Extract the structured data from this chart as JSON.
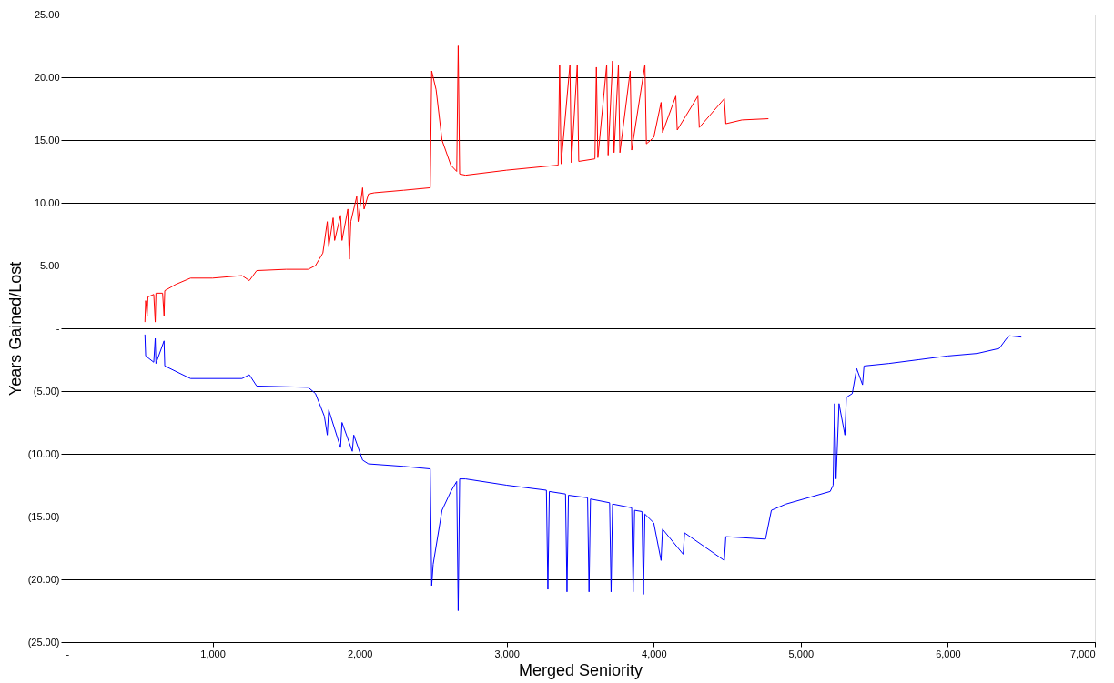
{
  "chart_data": {
    "type": "line",
    "xlabel": "Merged Seniority",
    "ylabel": "Years Gained/Lost",
    "xlim": [
      0,
      7000
    ],
    "ylim": [
      -25,
      25
    ],
    "xticks": [
      {
        "value": 0,
        "label": "-"
      },
      {
        "value": 1000,
        "label": "1,000"
      },
      {
        "value": 2000,
        "label": "2,000"
      },
      {
        "value": 3000,
        "label": "3,000"
      },
      {
        "value": 4000,
        "label": "4,000"
      },
      {
        "value": 5000,
        "label": "5,000"
      },
      {
        "value": 6000,
        "label": "6,000"
      },
      {
        "value": 7000,
        "label": "7,000"
      }
    ],
    "yticks": [
      {
        "value": -25,
        "label": "(25.00)"
      },
      {
        "value": -20,
        "label": "(20.00)"
      },
      {
        "value": -15,
        "label": "(15.00)"
      },
      {
        "value": -10,
        "label": "(10.00)"
      },
      {
        "value": -5,
        "label": "(5.00)"
      },
      {
        "value": 0,
        "label": "-"
      },
      {
        "value": 5,
        "label": "5.00"
      },
      {
        "value": 10,
        "label": "10.00"
      },
      {
        "value": 15,
        "label": "15.00"
      },
      {
        "value": 20,
        "label": "20.00"
      },
      {
        "value": 25,
        "label": "25.00"
      }
    ],
    "grid": "y",
    "line_style": "solid",
    "marker": "none",
    "series": [
      {
        "color": "#0000ff",
        "x": [
          540,
          545,
          600,
          610,
          615,
          670,
          675,
          850,
          1200,
          1250,
          1300,
          1650,
          1700,
          1760,
          1780,
          1790,
          1870,
          1880,
          1950,
          1960,
          2020,
          2060,
          2300,
          2480,
          2490,
          2500,
          2560,
          2620,
          2660,
          2670,
          2680,
          2720,
          3000,
          3270,
          3280,
          3290,
          3400,
          3410,
          3420,
          3550,
          3560,
          3570,
          3700,
          3710,
          3720,
          3850,
          3860,
          3870,
          3920,
          3930,
          3940,
          4000,
          4050,
          4060,
          4200,
          4210,
          4480,
          4490,
          4760,
          4800,
          4900,
          5200,
          5220,
          5230,
          5240,
          5260,
          5300,
          5310,
          5350,
          5380,
          5420,
          5430,
          5600,
          5800,
          6000,
          6200,
          6350,
          6400,
          6420,
          6500
        ],
        "values": [
          -0.5,
          -2.2,
          -2.7,
          -0.8,
          -2.8,
          -1.0,
          -3.0,
          -4.0,
          -4.0,
          -3.7,
          -4.6,
          -4.7,
          -5.2,
          -7.0,
          -8.5,
          -6.5,
          -9.5,
          -7.5,
          -9.8,
          -8.5,
          -10.5,
          -10.8,
          -11.0,
          -11.2,
          -20.5,
          -18.8,
          -14.5,
          -13.0,
          -12.2,
          -22.5,
          -12.0,
          -12.0,
          -12.5,
          -12.9,
          -20.8,
          -13.0,
          -13.2,
          -21.0,
          -13.3,
          -13.5,
          -21.0,
          -13.6,
          -13.9,
          -21.0,
          -14.0,
          -14.3,
          -21.0,
          -14.5,
          -14.6,
          -21.2,
          -14.8,
          -15.5,
          -18.5,
          -16.0,
          -18.0,
          -16.3,
          -18.5,
          -16.6,
          -16.8,
          -14.5,
          -14.0,
          -13.0,
          -12.5,
          -6.0,
          -12.0,
          -6.0,
          -8.5,
          -5.5,
          -5.2,
          -3.2,
          -4.5,
          -3.0,
          -2.8,
          -2.5,
          -2.2,
          -2.0,
          -1.6,
          -0.8,
          -0.6,
          -0.7
        ]
      },
      {
        "color": "#ff0000",
        "x": [
          540,
          545,
          555,
          560,
          600,
          610,
          615,
          660,
          670,
          675,
          750,
          850,
          1000,
          1200,
          1250,
          1300,
          1500,
          1650,
          1700,
          1750,
          1780,
          1790,
          1820,
          1830,
          1870,
          1880,
          1920,
          1930,
          1940,
          1980,
          1990,
          2020,
          2030,
          2060,
          2100,
          2300,
          2480,
          2490,
          2520,
          2560,
          2620,
          2660,
          2670,
          2680,
          2720,
          3000,
          3350,
          3360,
          3370,
          3430,
          3440,
          3480,
          3490,
          3600,
          3610,
          3620,
          3680,
          3690,
          3720,
          3730,
          3760,
          3770,
          3840,
          3850,
          3940,
          3950,
          4000,
          4050,
          4060,
          4150,
          4160,
          4300,
          4310,
          4480,
          4490,
          4600,
          4780
        ],
        "values": [
          0.5,
          2.2,
          1.0,
          2.5,
          2.7,
          0.5,
          2.8,
          2.8,
          1.0,
          3.0,
          3.5,
          4.0,
          4.0,
          4.2,
          3.8,
          4.6,
          4.7,
          4.7,
          5.0,
          6.0,
          8.5,
          6.5,
          8.8,
          7.0,
          9.0,
          7.0,
          9.5,
          5.5,
          8.5,
          10.5,
          8.5,
          11.2,
          9.5,
          10.7,
          10.8,
          11.0,
          11.2,
          20.5,
          19.0,
          15.0,
          13.0,
          12.5,
          22.5,
          12.3,
          12.2,
          12.6,
          13.0,
          21.0,
          13.1,
          21.0,
          13.2,
          21.0,
          13.3,
          13.5,
          20.8,
          13.6,
          21.0,
          13.8,
          21.3,
          14.0,
          21.0,
          14.0,
          20.5,
          14.2,
          21.0,
          14.7,
          15.2,
          18.0,
          15.6,
          18.5,
          15.8,
          18.5,
          16.0,
          18.3,
          16.3,
          16.6,
          16.7
        ]
      }
    ]
  }
}
